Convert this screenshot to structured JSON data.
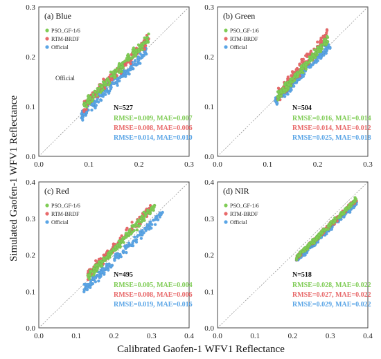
{
  "figure": {
    "ylabel": "Simulated Gaofen-1 WFV1 Reflectance",
    "xlabel": "Calibrated Gaofen-1 WFV1 Reflectance"
  },
  "colors": {
    "PSO_GF-1/6": "#7fcc55",
    "RTM-BRDF": "#e8696a",
    "Official": "#5aa5e6"
  },
  "chart_data": [
    {
      "type": "scatter",
      "panel": "(a) Blue",
      "xlim": [
        0,
        0.3
      ],
      "ylim": [
        0,
        0.3
      ],
      "xticks": [
        "0.0",
        "0.1",
        "0.2",
        "0.3"
      ],
      "yticks": [
        "0.0",
        "0.1",
        "0.2",
        "0.3"
      ],
      "legend": [
        "PSO_GF-1/6",
        "RTM-BRDF",
        "Official"
      ],
      "annotation": "Official",
      "n_label": "N=527",
      "stats": [
        {
          "series": "PSO_GF-1/6",
          "text": "RMSE=0.009, MAE=0.007"
        },
        {
          "series": "RTM-BRDF",
          "text": "RMSE=0.008, MAE=0.006"
        },
        {
          "series": "Official",
          "text": "RMSE=0.014, MAE=0.010"
        }
      ],
      "series": [
        {
          "name": "Official",
          "x_range": [
            0.085,
            0.215
          ],
          "slope": 1.0,
          "offset": -0.004,
          "spread": 0.012,
          "points": [
            [
              0.09,
              0.085
            ],
            [
              0.12,
              0.115
            ],
            [
              0.15,
              0.145
            ],
            [
              0.18,
              0.175
            ],
            [
              0.21,
              0.205
            ]
          ]
        },
        {
          "name": "RTM-BRDF",
          "x_range": [
            0.09,
            0.22
          ],
          "slope": 1.05,
          "offset": 0.006,
          "spread": 0.012,
          "points": [
            [
              0.09,
              0.1
            ],
            [
              0.12,
              0.133
            ],
            [
              0.15,
              0.165
            ],
            [
              0.18,
              0.196
            ],
            [
              0.22,
              0.238
            ]
          ]
        },
        {
          "name": "PSO_GF-1/6",
          "x_range": [
            0.09,
            0.22
          ],
          "slope": 1.05,
          "offset": 0.007,
          "spread": 0.012,
          "points": [
            [
              0.09,
              0.101
            ],
            [
              0.12,
              0.134
            ],
            [
              0.15,
              0.166
            ],
            [
              0.18,
              0.197
            ],
            [
              0.22,
              0.24
            ]
          ]
        }
      ]
    },
    {
      "type": "scatter",
      "panel": "(b) Green",
      "xlim": [
        0,
        0.3
      ],
      "ylim": [
        0,
        0.3
      ],
      "xticks": [
        "0.0",
        "0.1",
        "0.2",
        "0.3"
      ],
      "yticks": [
        "0.0",
        "0.1",
        "0.2",
        "0.3"
      ],
      "legend": [
        "PSO_GF-1/6",
        "RTM-BRDF",
        "Official"
      ],
      "n_label": "N=504",
      "stats": [
        {
          "series": "PSO_GF-1/6",
          "text": "RMSE=0.016, MAE=0.014"
        },
        {
          "series": "RTM-BRDF",
          "text": "RMSE=0.014, MAE=0.012"
        },
        {
          "series": "Official",
          "text": "RMSE=0.025, MAE=0.018"
        }
      ],
      "series": [
        {
          "name": "Official",
          "x_range": [
            0.115,
            0.225
          ],
          "slope": 1.05,
          "offset": -0.012,
          "spread": 0.012,
          "points": [
            [
              0.12,
              0.104
            ],
            [
              0.15,
              0.135
            ],
            [
              0.18,
              0.167
            ],
            [
              0.21,
              0.198
            ]
          ]
        },
        {
          "name": "RTM-BRDF",
          "x_range": [
            0.12,
            0.22
          ],
          "slope": 1.25,
          "offset": -0.03,
          "spread": 0.014,
          "points": [
            [
              0.12,
              0.12
            ],
            [
              0.15,
              0.158
            ],
            [
              0.18,
              0.195
            ],
            [
              0.21,
              0.233
            ]
          ]
        },
        {
          "name": "PSO_GF-1/6",
          "x_range": [
            0.12,
            0.22
          ],
          "slope": 1.15,
          "offset": -0.018,
          "spread": 0.012,
          "points": [
            [
              0.12,
              0.12
            ],
            [
              0.15,
              0.155
            ],
            [
              0.18,
              0.189
            ],
            [
              0.21,
              0.224
            ]
          ]
        }
      ]
    },
    {
      "type": "scatter",
      "panel": "(c) Red",
      "xlim": [
        0,
        0.4
      ],
      "ylim": [
        0,
        0.4
      ],
      "xticks": [
        "0.0",
        "0.1",
        "0.2",
        "0.3",
        "0.4"
      ],
      "yticks": [
        "0.0",
        "0.1",
        "0.2",
        "0.3",
        "0.4"
      ],
      "legend": [
        "PSO_GF-1/6",
        "RTM-BRDF",
        "Official"
      ],
      "n_label": "N=495",
      "stats": [
        {
          "series": "PSO_GF-1/6",
          "text": "RMSE=0.005, MAE=0.004"
        },
        {
          "series": "RTM-BRDF",
          "text": "RMSE=0.008, MAE=0.006"
        },
        {
          "series": "Official",
          "text": "RMSE=0.019, MAE=0.016"
        }
      ],
      "series": [
        {
          "name": "Official",
          "x_range": [
            0.12,
            0.33
          ],
          "slope": 1.0,
          "offset": -0.015,
          "spread": 0.014,
          "points": [
            [
              0.12,
              0.105
            ],
            [
              0.18,
              0.165
            ],
            [
              0.24,
              0.225
            ],
            [
              0.3,
              0.285
            ],
            [
              0.33,
              0.315
            ]
          ]
        },
        {
          "name": "RTM-BRDF",
          "x_range": [
            0.13,
            0.3
          ],
          "slope": 1.08,
          "offset": 0.005,
          "spread": 0.014,
          "points": [
            [
              0.13,
              0.145
            ],
            [
              0.18,
              0.199
            ],
            [
              0.24,
              0.264
            ],
            [
              0.3,
              0.329
            ]
          ]
        },
        {
          "name": "PSO_GF-1/6",
          "x_range": [
            0.13,
            0.31
          ],
          "slope": 1.1,
          "offset": -0.005,
          "spread": 0.014,
          "points": [
            [
              0.13,
              0.138
            ],
            [
              0.18,
              0.193
            ],
            [
              0.24,
              0.259
            ],
            [
              0.31,
              0.336
            ]
          ]
        }
      ]
    },
    {
      "type": "scatter",
      "panel": "(d) NIR",
      "xlim": [
        0,
        0.4
      ],
      "ylim": [
        0,
        0.4
      ],
      "xticks": [
        "0.0",
        "0.1",
        "0.2",
        "0.3",
        "0.4"
      ],
      "yticks": [
        "0.0",
        "0.1",
        "0.2",
        "0.3",
        "0.4"
      ],
      "legend": [
        "PSO_GF-1/6",
        "RTM-BRDF",
        "Official"
      ],
      "n_label": "N=518",
      "stats": [
        {
          "series": "PSO_GF-1/6",
          "text": "RMSE=0.028, MAE=0.022"
        },
        {
          "series": "RTM-BRDF",
          "text": "RMSE=0.027, MAE=0.022"
        },
        {
          "series": "Official",
          "text": "RMSE=0.029, MAE=0.022"
        }
      ],
      "series": [
        {
          "name": "Official",
          "x_range": [
            0.21,
            0.37
          ],
          "slope": 0.98,
          "offset": -0.02,
          "spread": 0.008,
          "points": [
            [
              0.21,
              0.186
            ],
            [
              0.26,
              0.235
            ],
            [
              0.31,
              0.284
            ],
            [
              0.37,
              0.343
            ]
          ]
        },
        {
          "name": "RTM-BRDF",
          "x_range": [
            0.21,
            0.37
          ],
          "slope": 1.0,
          "offset": -0.018,
          "spread": 0.008,
          "points": [
            [
              0.21,
              0.192
            ],
            [
              0.26,
              0.242
            ],
            [
              0.31,
              0.292
            ],
            [
              0.37,
              0.352
            ]
          ]
        },
        {
          "name": "PSO_GF-1/6",
          "x_range": [
            0.21,
            0.37
          ],
          "slope": 1.0,
          "offset": -0.017,
          "spread": 0.008,
          "points": [
            [
              0.21,
              0.193
            ],
            [
              0.26,
              0.243
            ],
            [
              0.31,
              0.293
            ],
            [
              0.37,
              0.353
            ]
          ]
        }
      ]
    }
  ]
}
